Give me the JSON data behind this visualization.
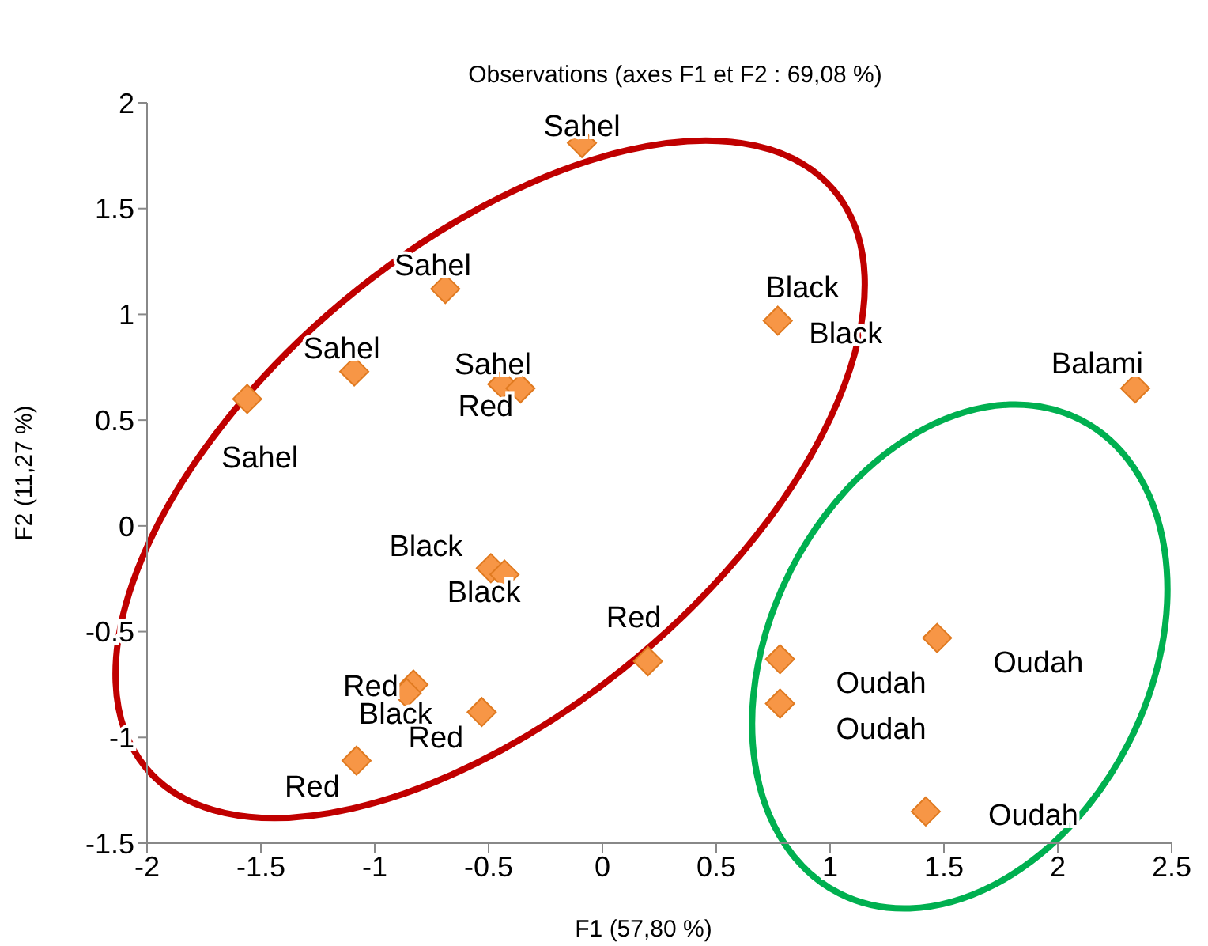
{
  "chart_data": {
    "type": "scatter",
    "title": "Observations (axes F1 et F2 : 69,08 %)",
    "xlabel": "F1 (57,80 %)",
    "ylabel": "F2 (11,27 %)",
    "x": [
      -0.09,
      -0.69,
      -1.09,
      -1.56,
      -0.44,
      -0.36,
      0.76,
      0.77,
      2.34,
      -0.49,
      -0.43,
      0.2,
      -0.83,
      -0.86,
      -0.53,
      -1.08,
      0.78,
      0.78,
      1.47,
      1.42
    ],
    "series": [
      {
        "color": "#f79646",
        "values": [
          1.81,
          1.12,
          0.73,
          0.6,
          0.67,
          0.65,
          null,
          0.97,
          0.65,
          -0.2,
          -0.23,
          -0.64,
          -0.75,
          -0.79,
          -0.88,
          -1.11,
          -0.63,
          -0.84,
          -0.53,
          -1.35
        ]
      }
    ],
    "annotations": [
      {
        "text": "Sahel",
        "x": -0.09,
        "y": 1.81
      },
      {
        "text": "Sahel",
        "x": -0.69,
        "y": 1.12
      },
      {
        "text": "Sahel",
        "x": -1.09,
        "y": 0.73
      },
      {
        "text": "Sahel",
        "x": -1.56,
        "y": 0.6
      },
      {
        "text": "Sahel",
        "x": -0.44,
        "y": 0.67
      },
      {
        "text": "Red",
        "x": -0.36,
        "y": 0.65
      },
      {
        "text": "Black",
        "x": 0.76,
        "y": 0.98
      },
      {
        "text": "Black",
        "x": 0.77,
        "y": 0.97
      },
      {
        "text": "Balami",
        "x": 2.34,
        "y": 0.65
      },
      {
        "text": "Black",
        "x": -0.49,
        "y": -0.2
      },
      {
        "text": "Black",
        "x": -0.43,
        "y": -0.23
      },
      {
        "text": "Red",
        "x": 0.2,
        "y": -0.64
      },
      {
        "text": "Red",
        "x": -0.83,
        "y": -0.75
      },
      {
        "text": "Black",
        "x": -0.86,
        "y": -0.79
      },
      {
        "text": "Red",
        "x": -0.53,
        "y": -0.88
      },
      {
        "text": "Red",
        "x": -1.08,
        "y": -1.11
      },
      {
        "text": "Oudah",
        "x": 0.78,
        "y": -0.63
      },
      {
        "text": "Oudah",
        "x": 0.78,
        "y": -0.84
      },
      {
        "text": "Oudah",
        "x": 1.47,
        "y": -0.53
      },
      {
        "text": "Oudah",
        "x": 1.42,
        "y": -1.35
      }
    ],
    "xlim": [
      -2,
      2.5
    ],
    "xticks": [
      -2,
      -1.5,
      -1,
      -0.5,
      0,
      0.5,
      1,
      1.5,
      2,
      2.5
    ],
    "ylim": [
      -1.5,
      2
    ],
    "yticks": [
      -1.5,
      -1,
      -0.5,
      0,
      0.5,
      1,
      1.5,
      2
    ],
    "grid": false,
    "legend": false,
    "marker": "diamond"
  }
}
